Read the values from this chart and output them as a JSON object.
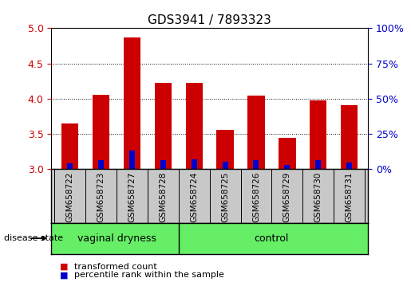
{
  "title": "GDS3941 / 7893323",
  "samples": [
    "GSM658722",
    "GSM658723",
    "GSM658727",
    "GSM658728",
    "GSM658724",
    "GSM658725",
    "GSM658726",
    "GSM658729",
    "GSM658730",
    "GSM658731"
  ],
  "red_values": [
    3.65,
    4.06,
    4.87,
    4.23,
    4.23,
    3.56,
    4.04,
    3.44,
    3.98,
    3.91
  ],
  "blue_values": [
    3.08,
    3.13,
    3.27,
    3.13,
    3.14,
    3.11,
    3.13,
    3.06,
    3.13,
    3.1
  ],
  "y_min": 3.0,
  "y_max": 5.0,
  "y_ticks_left": [
    3.0,
    3.5,
    4.0,
    4.5,
    5.0
  ],
  "y_ticks_right": [
    0,
    25,
    50,
    75,
    100
  ],
  "groups": [
    {
      "label": "vaginal dryness",
      "start": 0,
      "end": 4
    },
    {
      "label": "control",
      "start": 4,
      "end": 10
    }
  ],
  "group_color": "#66EE66",
  "bar_color_red": "#CC0000",
  "bar_color_blue": "#0000CC",
  "bar_width": 0.55,
  "blue_bar_width": 0.18,
  "tick_area_bg": "#C8C8C8",
  "left_tick_color": "#CC0000",
  "right_tick_color": "#0000CC",
  "legend_red_label": "transformed count",
  "legend_blue_label": "percentile rank within the sample",
  "disease_state_label": "disease state"
}
